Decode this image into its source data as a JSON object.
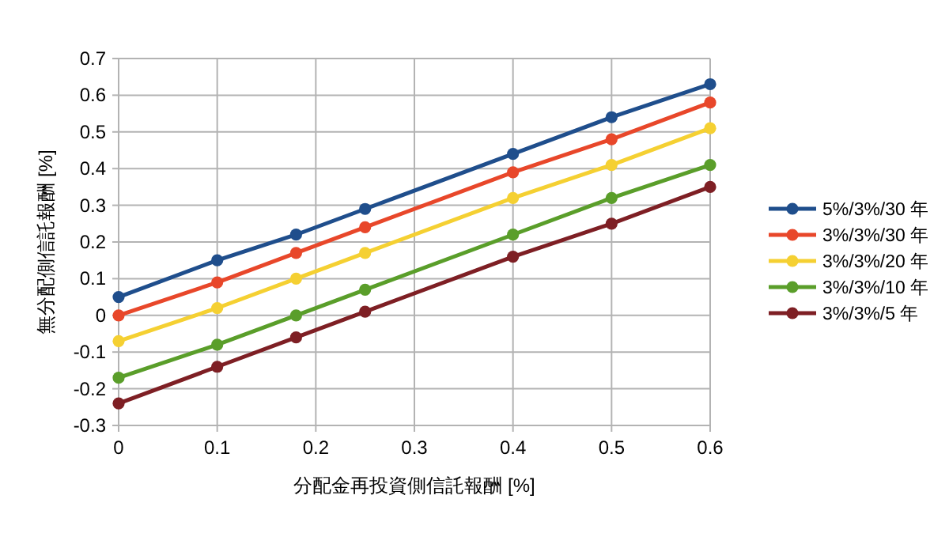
{
  "chart_data": {
    "type": "line",
    "xlabel": "分配金再投資側信託報酬 [%]",
    "ylabel": "無分配側信託報酬 [%]",
    "x": [
      0,
      0.1,
      0.18,
      0.25,
      0.4,
      0.5,
      0.6
    ],
    "series": [
      {
        "name": "5%/3%/30 年",
        "color": "#1f4e8c",
        "values": [
          0.05,
          0.15,
          0.22,
          0.29,
          0.44,
          0.54,
          0.63
        ]
      },
      {
        "name": "3%/3%/30 年",
        "color": "#e8472a",
        "values": [
          0.0,
          0.09,
          0.17,
          0.24,
          0.39,
          0.48,
          0.58
        ]
      },
      {
        "name": "3%/3%/20 年",
        "color": "#f5d032",
        "values": [
          -0.07,
          0.02,
          0.1,
          0.17,
          0.32,
          0.41,
          0.51
        ]
      },
      {
        "name": "3%/3%/10 年",
        "color": "#5a9e2a",
        "values": [
          -0.17,
          -0.08,
          0.0,
          0.07,
          0.22,
          0.32,
          0.41
        ]
      },
      {
        "name": "3%/3%/5 年",
        "color": "#7e1f24",
        "values": [
          -0.24,
          -0.14,
          -0.06,
          0.01,
          0.16,
          0.25,
          0.35
        ]
      }
    ],
    "xlim": [
      0,
      0.6
    ],
    "xticks": [
      0,
      0.1,
      0.2,
      0.3,
      0.4,
      0.5,
      0.6
    ],
    "ylim": [
      -0.3,
      0.7
    ],
    "yticks": [
      -0.3,
      -0.2,
      -0.1,
      0,
      0.1,
      0.2,
      0.3,
      0.4,
      0.5,
      0.6,
      0.7
    ],
    "grid": true,
    "legend": "right",
    "marker": "circle",
    "line_style": "solid"
  }
}
